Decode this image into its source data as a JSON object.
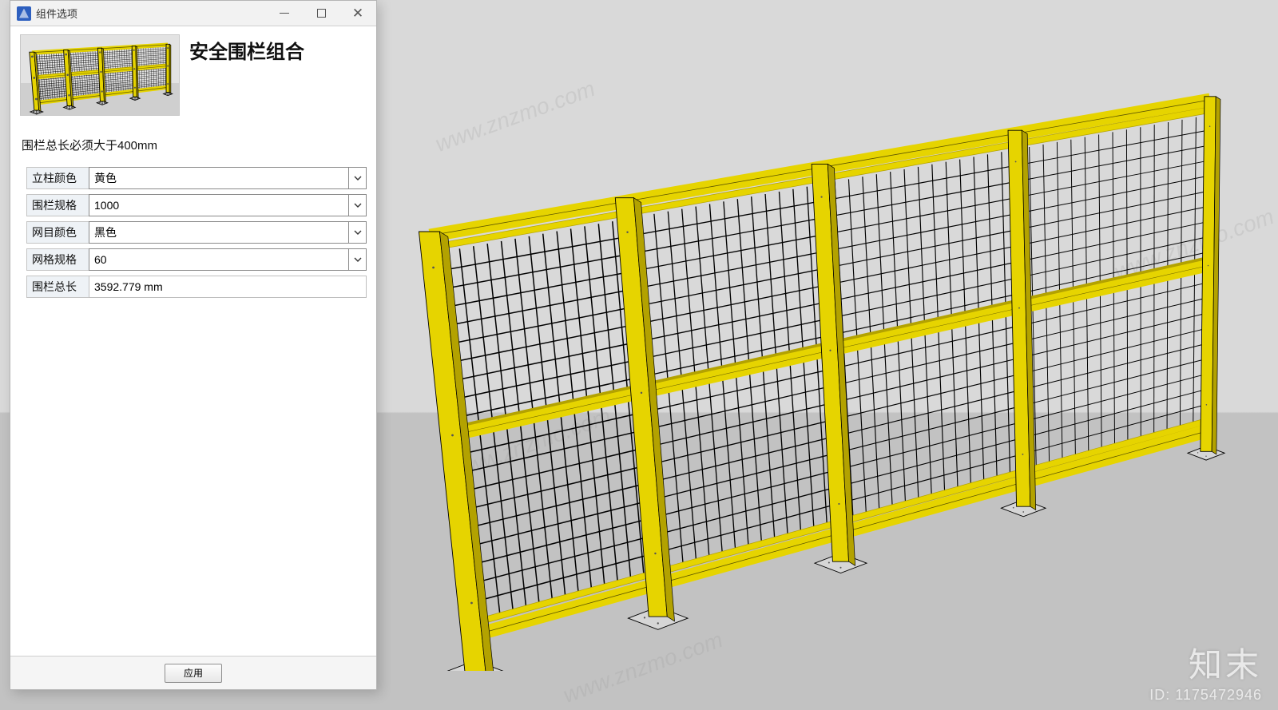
{
  "window": {
    "title": "组件选项",
    "app_icon_color": "#2d5fbf"
  },
  "header": {
    "component_title": "安全围栏组合"
  },
  "note_text": "围栏总长必须大于400mm",
  "form": {
    "rows": [
      {
        "label": "立柱颜色",
        "value": "黄色",
        "type": "select"
      },
      {
        "label": "围栏规格",
        "value": "1000",
        "type": "select"
      },
      {
        "label": "网目颜色",
        "value": "黑色",
        "type": "select"
      },
      {
        "label": "网格规格",
        "value": "60",
        "type": "select"
      },
      {
        "label": "围栏总长",
        "value": "3592.779 mm",
        "type": "text"
      }
    ],
    "apply_label": "应用"
  },
  "model": {
    "post_color": "#e6d400",
    "post_shadow": "#b3a200",
    "mesh_color": "#000000",
    "outline": "#000000",
    "panels": 4,
    "mesh_cols_per_panel": 14,
    "mesh_rows": 20,
    "mid_rail_ratio": 0.5,
    "foot_plate_color": "#d6d6d6",
    "background_top": "#d9d9d9",
    "background_bottom": "#c2c2c2"
  },
  "watermark": {
    "brand": "知末",
    "id_label": "ID: 1175472946",
    "url": "www.znzmo.com"
  }
}
